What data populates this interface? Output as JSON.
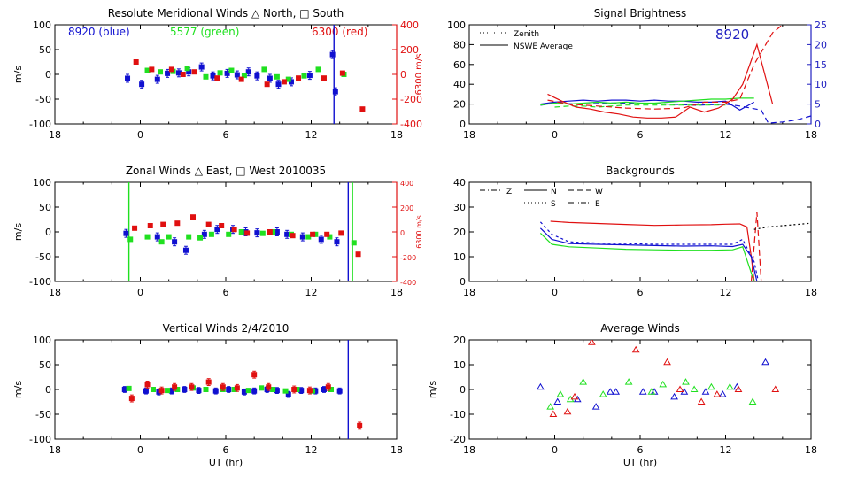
{
  "colors": {
    "blue": "#1010d0",
    "green": "#20e020",
    "red": "#e01010",
    "axis": "#000000",
    "rightBlue": "#2020c0"
  },
  "chart_data": [
    {
      "id": "meridional",
      "type": "scatter",
      "title": "Resolute Meridional Winds △ North, □ South",
      "ylabel": "m/s",
      "ylabel_right": "6300 m/s",
      "xlabel": "",
      "xticks": [
        "18",
        "0",
        "6",
        "12",
        "18"
      ],
      "xlim": [
        -6,
        18
      ],
      "ylim": [
        -100,
        100
      ],
      "yticks": [
        "100",
        "50",
        "0",
        "-50",
        "-100"
      ],
      "ylim_right": [
        -400,
        400
      ],
      "yticks_right": [
        "400",
        "200",
        "0",
        "-200",
        "-400"
      ],
      "legend": {
        "blue": "8920  (blue)",
        "green": "5577  (green)",
        "red": "6300  (red)"
      },
      "vlines": [
        {
          "x": 13.6,
          "color": "blue"
        }
      ],
      "series": [
        {
          "name": "8920",
          "color": "blue",
          "marker": "square",
          "err": 8,
          "x": [
            -0.9,
            0.1,
            1.2,
            1.9,
            2.7,
            3.4,
            4.3,
            5.1,
            6.1,
            6.8,
            7.6,
            8.2,
            9.1,
            9.7,
            10.6,
            11.9,
            13.5,
            13.7
          ],
          "y": [
            -8,
            -20,
            -10,
            2,
            3,
            5,
            15,
            -3,
            2,
            -1,
            5,
            -3,
            -8,
            -20,
            -15,
            -2,
            40,
            -35
          ]
        },
        {
          "name": "5577",
          "color": "green",
          "marker": "square",
          "err": 0,
          "x": [
            0.5,
            1.4,
            2.3,
            3.3,
            4.6,
            5.6,
            6.4,
            7.3,
            8.7,
            9.6,
            10.4,
            11.5,
            12.5,
            14.3
          ],
          "y": [
            8,
            5,
            6,
            12,
            -5,
            3,
            8,
            -2,
            10,
            -5,
            -10,
            -3,
            10,
            0
          ]
        },
        {
          "name": "6300",
          "color": "red",
          "marker": "square",
          "err": 0,
          "axis": "right",
          "x": [
            -0.3,
            0.8,
            2.2,
            3.0,
            3.8,
            5.4,
            7.1,
            8.9,
            10.1,
            11.1,
            12.9,
            14.2,
            15.6
          ],
          "y": [
            100,
            40,
            40,
            0,
            20,
            -30,
            -40,
            -80,
            -60,
            -30,
            -30,
            10,
            -280
          ]
        }
      ]
    },
    {
      "id": "zonal",
      "type": "scatter",
      "title": "Zonal Winds △ East, □ West 2010035",
      "ylabel": "m/s",
      "ylabel_right": "6300 m/s",
      "xlabel": "",
      "xticks": [
        "18",
        "0",
        "6",
        "12",
        "18"
      ],
      "xlim": [
        -6,
        18
      ],
      "ylim": [
        -100,
        100
      ],
      "yticks": [
        "100",
        "50",
        "0",
        "-50",
        "-100"
      ],
      "ylim_right": [
        -400,
        400
      ],
      "yticks_right": [
        "400",
        "200",
        "0",
        "-200",
        "-400"
      ],
      "vlines": [
        {
          "x": -0.8,
          "color": "green"
        },
        {
          "x": 14.6,
          "color": "blue"
        },
        {
          "x": 14.9,
          "color": "green"
        }
      ],
      "series": [
        {
          "name": "8920",
          "color": "blue",
          "marker": "square",
          "err": 8,
          "x": [
            -1.0,
            1.2,
            2.4,
            3.2,
            4.5,
            5.4,
            6.5,
            7.4,
            8.2,
            9.6,
            10.3,
            11.4,
            12.7,
            13.8
          ],
          "y": [
            -3,
            -10,
            -20,
            -37,
            -5,
            5,
            5,
            0,
            -2,
            0,
            -5,
            -10,
            -15,
            -20
          ]
        },
        {
          "name": "5577",
          "color": "green",
          "marker": "square",
          "err": 0,
          "x": [
            -0.7,
            0.5,
            1.5,
            2.0,
            3.4,
            4.2,
            5.0,
            6.2,
            7.1,
            8.6,
            9.3,
            10.6,
            11.8,
            12.3,
            13.3,
            15.0
          ],
          "y": [
            -15,
            -10,
            -20,
            -10,
            -10,
            -12,
            -5,
            -5,
            0,
            -3,
            0,
            -5,
            -10,
            -5,
            -10,
            -22
          ]
        },
        {
          "name": "6300",
          "color": "red",
          "marker": "square",
          "err": 0,
          "axis": "right",
          "x": [
            -0.4,
            0.7,
            1.6,
            2.6,
            3.7,
            4.8,
            5.7,
            6.6,
            7.5,
            9.1,
            10.7,
            12.1,
            13.1,
            14.1,
            15.3
          ],
          "y": [
            30,
            50,
            60,
            70,
            120,
            60,
            50,
            20,
            -10,
            0,
            -30,
            -20,
            -20,
            -10,
            -180
          ]
        }
      ]
    },
    {
      "id": "vertical",
      "type": "scatter",
      "title": "Vertical Winds 2/4/2010",
      "ylabel": "m/s",
      "xlabel": "UT (hr)",
      "xticks": [
        "18",
        "0",
        "6",
        "12",
        "18"
      ],
      "xlim": [
        -6,
        18
      ],
      "ylim": [
        -100,
        100
      ],
      "yticks": [
        "100",
        "50",
        "0",
        "-50",
        "-100"
      ],
      "vlines": [
        {
          "x": 14.6,
          "color": "blue"
        }
      ],
      "series": [
        {
          "name": "8920",
          "color": "blue",
          "marker": "square",
          "err": 6,
          "x": [
            -1.1,
            0.4,
            1.3,
            2.2,
            3.1,
            4.1,
            5.3,
            6.2,
            7.3,
            8.0,
            8.9,
            9.6,
            10.4,
            11.3,
            12.3,
            12.9,
            14.0
          ],
          "y": [
            0,
            -3,
            -5,
            -3,
            0,
            -2,
            -3,
            0,
            -5,
            -3,
            0,
            -2,
            -10,
            -2,
            -3,
            0,
            -3
          ]
        },
        {
          "name": "5577",
          "color": "green",
          "marker": "square",
          "err": 0,
          "x": [
            -0.8,
            0.9,
            1.9,
            2.6,
            3.7,
            4.6,
            5.8,
            6.6,
            7.6,
            8.5,
            9.3,
            10.2,
            11.0,
            12.1,
            13.4
          ],
          "y": [
            2,
            0,
            -2,
            0,
            3,
            0,
            0,
            0,
            -2,
            3,
            0,
            -3,
            0,
            -3,
            0
          ]
        },
        {
          "name": "6300",
          "color": "red",
          "marker": "square",
          "err": 7,
          "x": [
            -0.6,
            0.5,
            1.5,
            2.4,
            3.6,
            4.8,
            5.8,
            6.8,
            8.0,
            9.0,
            10.8,
            11.9,
            13.2,
            15.4
          ],
          "y": [
            -18,
            10,
            -2,
            5,
            5,
            15,
            5,
            3,
            30,
            5,
            0,
            -2,
            5,
            -73
          ]
        }
      ]
    },
    {
      "id": "brightness",
      "type": "line",
      "title": "Signal Brightness",
      "ylabel": "",
      "xlabel": "",
      "xticks": [
        "18",
        "0",
        "6",
        "12",
        "18"
      ],
      "xlim": [
        -6,
        18
      ],
      "ylim": [
        0,
        100
      ],
      "yticks": [
        "100",
        "80",
        "60",
        "40",
        "20",
        "0"
      ],
      "ylim_right": [
        0,
        25
      ],
      "yticks_right": [
        "25",
        "20",
        "15",
        "10",
        "5",
        "0"
      ],
      "annotation": "8920",
      "legend": [
        {
          "label": "Zenith",
          "style": "dotted"
        },
        {
          "label": "NSWE Average",
          "style": "solid"
        }
      ],
      "series": [
        {
          "name": "8920 solid",
          "color": "blue",
          "dash": "",
          "x": [
            -1,
            0,
            1,
            2,
            3,
            4,
            5,
            6,
            7,
            8,
            9,
            10,
            11,
            12,
            13,
            14
          ],
          "y": [
            20,
            22,
            23,
            24,
            23,
            24,
            24,
            23,
            24,
            23,
            23,
            22,
            22,
            23,
            14,
            22
          ]
        },
        {
          "name": "8920 dashed",
          "color": "blue",
          "dash": "6,4",
          "axis": "right",
          "x": [
            -1,
            0,
            2,
            4,
            6,
            8,
            10,
            12,
            13,
            14.5,
            15,
            16,
            17,
            18
          ],
          "y": [
            4.7,
            5.2,
            5,
            5.3,
            5.2,
            5,
            4.7,
            5,
            4.5,
            3.5,
            0.2,
            0.5,
            1,
            2
          ]
        },
        {
          "name": "5577 solid",
          "color": "green",
          "dash": "",
          "x": [
            -1,
            0,
            1,
            2,
            3,
            4,
            5,
            6,
            7,
            8,
            9,
            10,
            11,
            12,
            13,
            14
          ],
          "y": [
            19,
            21,
            20,
            21,
            22,
            21,
            22,
            21,
            21,
            22,
            23,
            24,
            25,
            25,
            26,
            26
          ]
        },
        {
          "name": "5577 dashed",
          "color": "green",
          "dash": "6,4",
          "x": [
            0,
            1,
            2,
            3,
            4,
            5,
            6,
            7,
            8,
            9,
            10,
            11,
            12
          ],
          "y": [
            17,
            18,
            18,
            17,
            18,
            19,
            19,
            19,
            19,
            19,
            19,
            19,
            19
          ]
        },
        {
          "name": "6300 solid",
          "color": "red",
          "dash": "",
          "x": [
            -0.5,
            0.5,
            1.5,
            2.5,
            3.5,
            4.5,
            5.5,
            6.5,
            7.5,
            8.5,
            9.5,
            10.5,
            11.5,
            12.5,
            13.2,
            14.2,
            15.3
          ],
          "y": [
            30,
            23,
            17,
            15,
            12,
            10,
            7,
            6,
            6,
            7,
            17,
            12,
            16,
            25,
            40,
            80,
            20
          ]
        },
        {
          "name": "6300 dashed",
          "color": "red",
          "dash": "7,4",
          "x": [
            -0.5,
            1,
            3,
            5,
            7,
            9,
            10.5,
            12,
            13,
            14,
            15.3,
            16
          ],
          "y": [
            24,
            20,
            18,
            16,
            15,
            16,
            22,
            22,
            25,
            60,
            92,
            100
          ]
        }
      ]
    },
    {
      "id": "backgrounds",
      "type": "line",
      "title": "Backgrounds",
      "ylabel": "",
      "xlabel": "",
      "xticks": [
        "18",
        "0",
        "6",
        "12",
        "18"
      ],
      "xlim": [
        -6,
        18
      ],
      "ylim": [
        0,
        40
      ],
      "yticks": [
        "40",
        "30",
        "20",
        "10",
        "0"
      ],
      "legend": [
        {
          "label": "Z",
          "style": "dashdot"
        },
        {
          "label": "N",
          "style": "solid"
        },
        {
          "label": "W",
          "style": "dashed"
        },
        {
          "label": "S",
          "style": "dotted"
        },
        {
          "label": "E",
          "style": "dashdotdot"
        }
      ],
      "series": [
        {
          "name": "6300",
          "color": "red",
          "dash": "",
          "x": [
            -0.3,
            1,
            3,
            5,
            7,
            9,
            11,
            12,
            13,
            13.5,
            13.8,
            14.0
          ],
          "y": [
            24.3,
            23.8,
            23.4,
            23.0,
            22.6,
            22.8,
            22.9,
            23.1,
            23.2,
            22,
            10,
            0
          ]
        },
        {
          "name": "6300 spike",
          "color": "red",
          "dash": "7,4",
          "x": [
            13.8,
            14.2,
            14.5
          ],
          "y": [
            0,
            28,
            0
          ]
        },
        {
          "name": "8920 N",
          "color": "blue",
          "dash": "",
          "x": [
            -1,
            -0.2,
            1,
            3,
            5,
            7,
            9,
            11,
            12.5,
            13.2,
            13.8,
            14.2
          ],
          "y": [
            21.5,
            17,
            15.3,
            15,
            14.8,
            14.5,
            14.3,
            14.4,
            14.1,
            15,
            10,
            0
          ]
        },
        {
          "name": "8920 S",
          "color": "blue",
          "dash": "3,3",
          "x": [
            -1,
            -0.2,
            1,
            3,
            5,
            7,
            9,
            11,
            12.5,
            13.2,
            14,
            14.3
          ],
          "y": [
            24,
            19,
            16,
            15.5,
            15.3,
            15,
            15,
            15,
            15,
            17,
            8,
            0
          ]
        },
        {
          "name": "5577",
          "color": "green",
          "dash": "",
          "x": [
            -1,
            -0.2,
            1,
            3,
            5,
            7,
            9,
            11,
            12.5,
            13.2,
            13.6,
            14.0
          ],
          "y": [
            19.5,
            15,
            14,
            13.5,
            13,
            12.8,
            12.6,
            12.6,
            12.8,
            14,
            7,
            0
          ]
        },
        {
          "name": "Zenith",
          "color": "black",
          "dash": "2,3",
          "x": [
            14,
            15,
            16,
            17,
            18
          ],
          "y": [
            21,
            22,
            22.5,
            23,
            23.5
          ]
        }
      ]
    },
    {
      "id": "average",
      "type": "scatter",
      "title": "Average Winds",
      "ylabel": "m/s",
      "xlabel": "UT (hr)",
      "xticks": [
        "18",
        "0",
        "6",
        "12",
        "18"
      ],
      "xlim": [
        -6,
        18
      ],
      "ylim": [
        -20,
        20
      ],
      "yticks": [
        "20",
        "10",
        "0",
        "-10",
        "-20"
      ],
      "series": [
        {
          "name": "8920",
          "color": "blue",
          "marker": "triangle",
          "err": 0,
          "x": [
            -1,
            0.2,
            1.6,
            2.9,
            3.9,
            4.3,
            6.2,
            7.0,
            8.4,
            9.1,
            10.6,
            11.8,
            12.8,
            14.8
          ],
          "y": [
            1,
            -5,
            -4,
            -7,
            -1,
            -1,
            -1,
            -1,
            -3,
            -1,
            -1,
            -2,
            1,
            11
          ]
        },
        {
          "name": "5577",
          "color": "green",
          "marker": "triangle",
          "err": 0,
          "x": [
            -0.3,
            0.4,
            1.1,
            2.0,
            3.4,
            5.2,
            6.8,
            7.6,
            9.2,
            9.8,
            11.0,
            12.3,
            13.9
          ],
          "y": [
            -7,
            -2,
            -4,
            3,
            -2,
            3,
            -1,
            2,
            3,
            0,
            1,
            1,
            -5
          ]
        },
        {
          "name": "6300",
          "color": "red",
          "marker": "triangle",
          "err": 0,
          "x": [
            -0.1,
            0.9,
            1.4,
            2.6,
            5.7,
            7.9,
            8.8,
            10.3,
            11.4,
            12.9,
            15.5
          ],
          "y": [
            -10,
            -9,
            -3,
            19,
            16,
            11,
            0,
            -5,
            -2,
            0,
            0
          ]
        }
      ]
    }
  ]
}
